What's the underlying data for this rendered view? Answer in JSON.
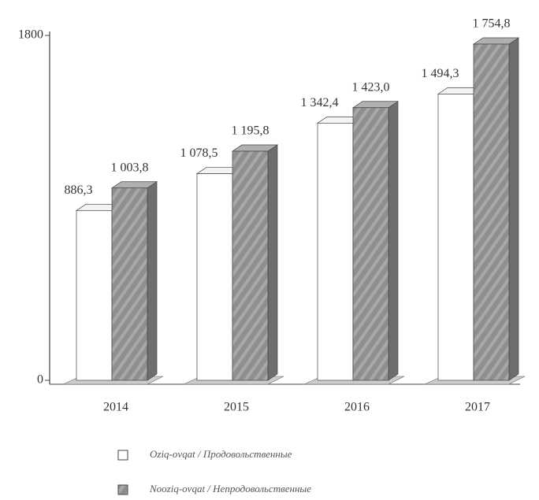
{
  "chart_data": {
    "type": "bar3d",
    "categories": [
      "2014",
      "2015",
      "2016",
      "2017"
    ],
    "series": [
      {
        "name": "Oziq-ovqat / Продовольственные",
        "color": "#ffffff",
        "values": [
          886.3,
          1078.5,
          1342.4,
          1494.3
        ],
        "value_labels": [
          "886,3",
          "1 078,5",
          "1 342,4",
          "1 494,3"
        ]
      },
      {
        "name": "Nooziq-ovqat / Непродовольственные",
        "color": "#8f8f8f",
        "values": [
          1003.8,
          1195.8,
          1423.0,
          1754.8
        ],
        "value_labels": [
          "1 003,8",
          "1 195,8",
          "1 423,0",
          "1 754,8"
        ]
      }
    ],
    "ylim": [
      0,
      1800
    ],
    "yticks": [
      0,
      1800
    ]
  }
}
